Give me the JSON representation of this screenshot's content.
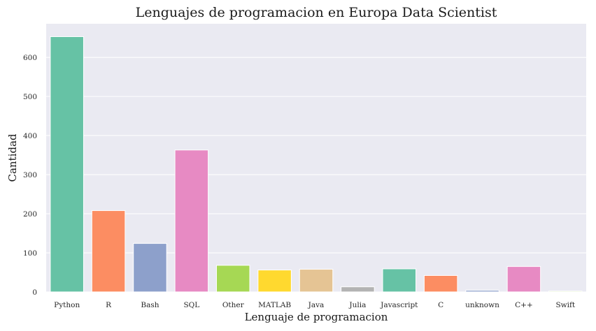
{
  "chart_data": {
    "type": "bar",
    "title": "Lenguajes de programacion en Europa Data Scientist",
    "xlabel": "Lenguaje de programacion",
    "ylabel": "Cantidad",
    "categories": [
      "Python",
      "R",
      "Bash",
      "SQL",
      "Other",
      "MATLAB",
      "Java",
      "Julia",
      "Javascript",
      "C",
      "unknown",
      "C++",
      "Swift"
    ],
    "values": [
      653,
      208,
      124,
      363,
      68,
      56,
      58,
      13,
      59,
      42,
      4,
      65,
      2
    ],
    "colors": [
      "#66c2a5",
      "#fc8d62",
      "#8da0cb",
      "#e78ac3",
      "#a6d854",
      "#ffd92f",
      "#e5c494",
      "#b3b3b3",
      "#66c2a5",
      "#fc8d62",
      "#8da0cb",
      "#e78ac3",
      "#a6d854"
    ],
    "yticks": [
      0,
      100,
      200,
      300,
      400,
      500,
      600
    ],
    "ylim": [
      0,
      686
    ],
    "grid": true,
    "background": "#eaeaf2"
  }
}
